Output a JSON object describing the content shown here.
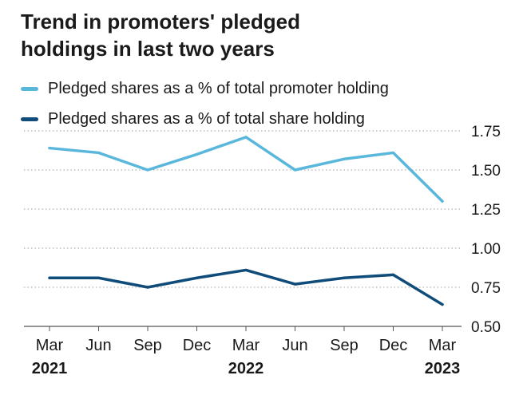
{
  "header": {
    "title_line1": "Trend in promoters' pledged",
    "title_line2": "holdings in last two years"
  },
  "colors": {
    "series1": "#5ab7dc",
    "series2": "#0f4c7a",
    "grid": "#9e9e9e",
    "axis": "#555555"
  },
  "chart_data": {
    "type": "line",
    "title": "Trend in promoters' pledged holdings in last two years",
    "xlabel": "",
    "ylabel": "",
    "categories": [
      "Mar",
      "Jun",
      "Sep",
      "Dec",
      "Mar",
      "Jun",
      "Sep",
      "Dec",
      "Mar"
    ],
    "year_labels": [
      {
        "index": 0,
        "label": "2021"
      },
      {
        "index": 4,
        "label": "2022"
      },
      {
        "index": 8,
        "label": "2023"
      }
    ],
    "series": [
      {
        "name": "Pledged shares as a % of total promoter holding",
        "values": [
          1.64,
          1.61,
          1.5,
          1.6,
          1.71,
          1.5,
          1.57,
          1.61,
          1.3
        ]
      },
      {
        "name": "Pledged shares as a % of total share holding",
        "values": [
          0.81,
          0.81,
          0.75,
          0.81,
          0.86,
          0.77,
          0.81,
          0.83,
          0.64
        ]
      }
    ],
    "yticks": [
      "1.75",
      "1.50",
      "1.25",
      "1.00",
      "0.75",
      "0.50"
    ],
    "ylim": [
      0.5,
      1.75
    ],
    "grid": "dotted horizontal",
    "legend": "top-left"
  }
}
